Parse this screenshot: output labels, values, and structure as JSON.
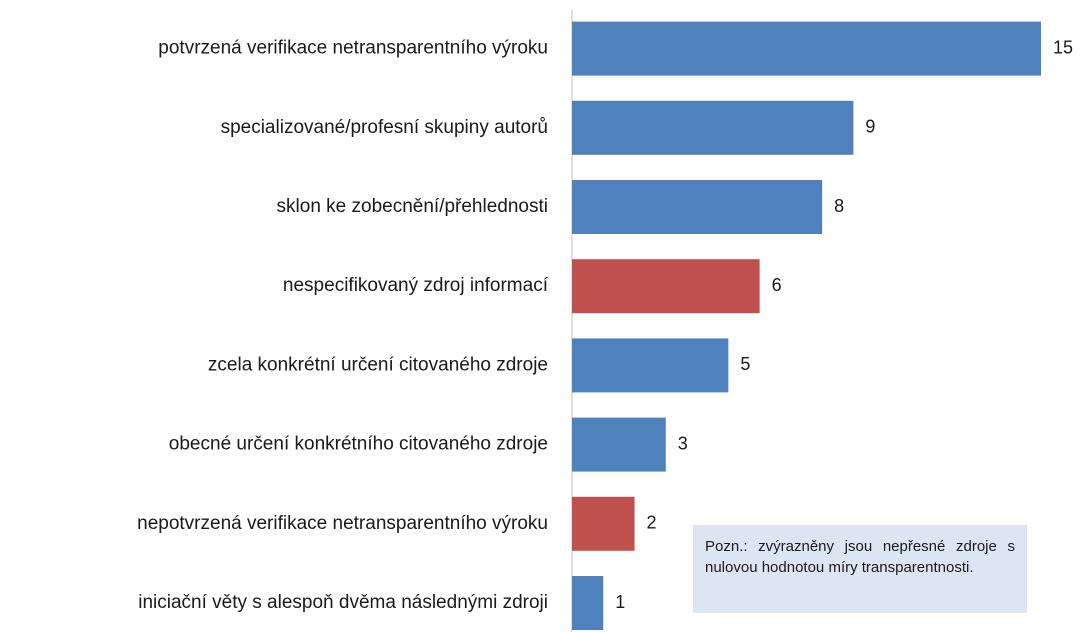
{
  "chart_data": {
    "type": "bar",
    "orientation": "horizontal",
    "categories": [
      "potvrzená verifikace netransparentního výroku",
      "specializované/profesní skupiny autorů",
      "sklon ke zobecnění/přehlednosti",
      "nespecifikovaný zdroj informací",
      "zcela konkrétní určení citovaného zdroje",
      "obecné určení konkrétního citovaného zdroje",
      "nepotvrzená verifikace netransparentního výroku",
      "iniciační věty s alespoň dvěma následnými zdroji"
    ],
    "values": [
      15,
      9,
      8,
      6,
      5,
      3,
      2,
      1
    ],
    "colors": [
      "#4f81bd",
      "#4f81bd",
      "#4f81bd",
      "#c0504d",
      "#4f81bd",
      "#4f81bd",
      "#c0504d",
      "#4f81bd"
    ],
    "annotation": "Pozn.: zvýrazněny jsou nepřesné zdroje s nulovou hodnotou míry transparentnosti."
  }
}
